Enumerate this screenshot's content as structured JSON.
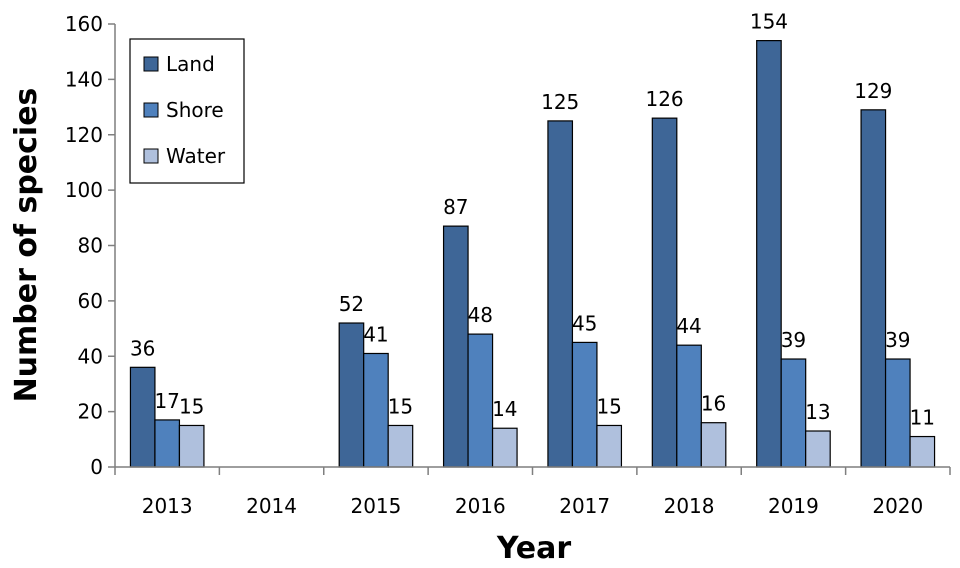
{
  "chart_data": {
    "type": "bar",
    "title": "",
    "xlabel": "Year",
    "ylabel": "Number of species",
    "categories": [
      "2013",
      "2014",
      "2015",
      "2016",
      "2017",
      "2018",
      "2019",
      "2020"
    ],
    "series": [
      {
        "name": "Land",
        "color": "#3E6697",
        "values": [
          36,
          null,
          52,
          87,
          125,
          126,
          154,
          129
        ]
      },
      {
        "name": "Shore",
        "color": "#4F81BD",
        "values": [
          17,
          null,
          41,
          48,
          45,
          44,
          39,
          39
        ]
      },
      {
        "name": "Water",
        "color": "#AFC0DD",
        "values": [
          15,
          null,
          15,
          14,
          15,
          16,
          13,
          11
        ]
      }
    ],
    "ylim": [
      0,
      160
    ],
    "yticks": [
      0,
      20,
      40,
      60,
      80,
      100,
      120,
      140,
      160
    ],
    "grid": false,
    "legend_position": "top-left",
    "data_labels": true
  }
}
